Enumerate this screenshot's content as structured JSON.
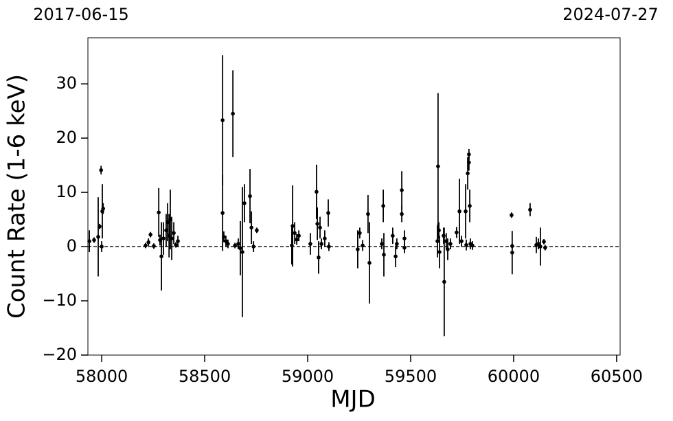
{
  "chart_data": {
    "type": "scatter",
    "x_label": "MJD",
    "y_label": "Count Rate (1-6 keV)",
    "top_labels": [
      "2017-06-15",
      "2024-07-27"
    ],
    "hline": 0,
    "color": "#000000",
    "xlim": [
      57933,
      60517
    ],
    "ylim": [
      -20,
      38.5
    ],
    "xticks": [
      58000,
      58500,
      59000,
      59500,
      60000,
      60500
    ],
    "yticks": [
      {
        "value": -20,
        "label": "−20"
      },
      {
        "value": -10,
        "label": "−10"
      },
      0,
      10,
      20,
      30
    ],
    "x": [
      57940,
      57963,
      57983,
      57990,
      57997,
      58000,
      58003,
      58007,
      58213,
      58227,
      58237,
      58253,
      58277,
      58283,
      58290,
      58300,
      58313,
      58320,
      58327,
      58333,
      58340,
      58350,
      58360,
      58370,
      58587,
      58587,
      58593,
      58603,
      58613,
      58637,
      58647,
      58663,
      58673,
      58683,
      58693,
      58720,
      58727,
      58737,
      58753,
      58923,
      58927,
      58937,
      58947,
      58957,
      59013,
      59043,
      59047,
      59053,
      59060,
      59067,
      59083,
      59100,
      59103,
      59243,
      59253,
      59267,
      59293,
      59300,
      59360,
      59367,
      59370,
      59413,
      59427,
      59433,
      59457,
      59457,
      59470,
      59470,
      59630,
      59633,
      59637,
      59640,
      59660,
      59663,
      59673,
      59680,
      59693,
      59723,
      59737,
      59747,
      59767,
      59770,
      59777,
      59783,
      59783,
      59787,
      59790,
      59800,
      59990,
      59993,
      59993,
      60080,
      60110,
      60120,
      60130,
      60147,
      60153
    ],
    "values": [
      1.0,
      1.2,
      1.8,
      3.7,
      14.1,
      0.0,
      6.5,
      7.0,
      0.2,
      0.8,
      2.2,
      0.1,
      6.3,
      1.2,
      -1.8,
      1.5,
      3.0,
      4.5,
      2.0,
      5.0,
      1.5,
      2.5,
      0.3,
      1.0,
      23.3,
      6.2,
      1.8,
      1.0,
      0.5,
      24.5,
      0.2,
      0.5,
      -0.3,
      -1.0,
      8.0,
      9.3,
      3.5,
      0.0,
      3.0,
      0.2,
      3.8,
      2.5,
      1.3,
      2.0,
      0.5,
      10.1,
      4.2,
      -2.0,
      3.5,
      0.5,
      1.5,
      6.2,
      0.0,
      -0.5,
      2.5,
      0.2,
      6.0,
      -3.0,
      0.5,
      7.5,
      -1.5,
      2.0,
      -1.8,
      0.5,
      10.4,
      6.0,
      1.5,
      -0.2,
      1.0,
      14.8,
      3.0,
      -1.0,
      2.0,
      -6.5,
      1.0,
      -0.5,
      0.5,
      2.6,
      6.5,
      1.0,
      6.5,
      0.3,
      13.5,
      17.0,
      15.5,
      7.5,
      0.5,
      0.2,
      5.8,
      -1.1,
      0.1,
      6.8,
      0.3,
      0.5,
      0.0,
      0.9,
      -0.2
    ],
    "errors": [
      2.0,
      0.5,
      7.3,
      0.5,
      0.8,
      1.0,
      5.0,
      1.0,
      0.5,
      0.7,
      0.5,
      0.5,
      4.5,
      1.0,
      6.3,
      3.0,
      3.0,
      3.5,
      4.0,
      5.5,
      4.0,
      2.0,
      0.5,
      1.0,
      12.0,
      7.0,
      1.0,
      1.0,
      0.8,
      8.0,
      0.5,
      1.0,
      5.0,
      12.0,
      3.5,
      5.0,
      3.0,
      1.0,
      0.5,
      3.5,
      7.5,
      2.0,
      1.0,
      1.0,
      2.0,
      5.0,
      3.0,
      3.0,
      2.0,
      1.0,
      1.5,
      2.5,
      0.8,
      3.5,
      1.0,
      1.0,
      3.5,
      7.5,
      1.0,
      3.0,
      4.0,
      1.5,
      2.0,
      1.0,
      3.5,
      1.5,
      1.5,
      1.0,
      3.0,
      13.5,
      1.5,
      3.0,
      1.5,
      10.0,
      1.5,
      2.0,
      1.0,
      1.0,
      6.0,
      1.0,
      5.0,
      1.0,
      3.0,
      1.0,
      1.5,
      3.0,
      1.0,
      0.8,
      0.5,
      4.0,
      0.5,
      1.2,
      1.5,
      1.0,
      3.5,
      0.5,
      0.5
    ]
  }
}
